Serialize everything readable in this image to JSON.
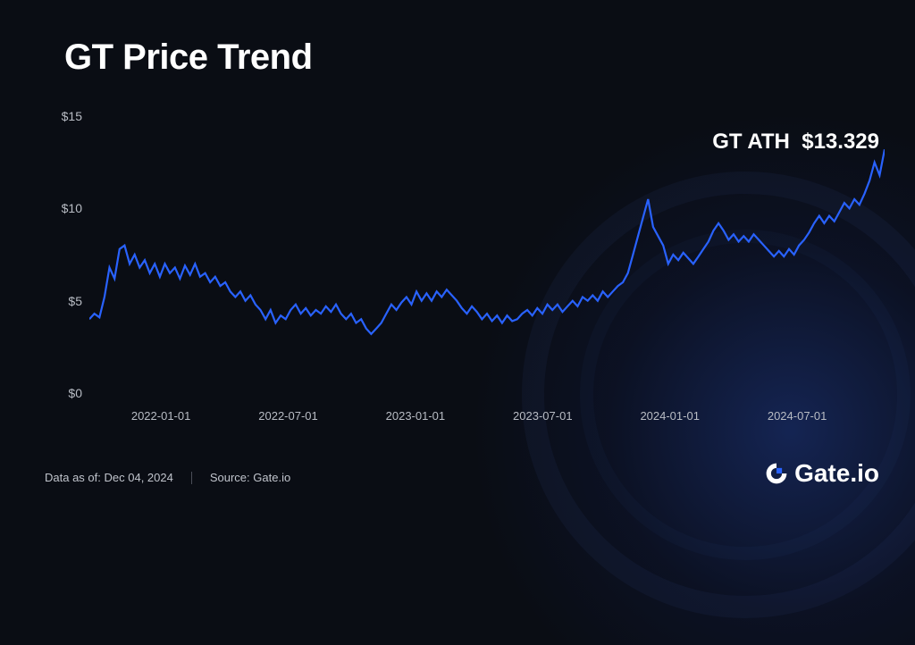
{
  "title": "GT Price Trend",
  "ath_label": "GT ATH",
  "ath_value": "$13.329",
  "footer": {
    "data_as_of_label": "Data as of:",
    "data_as_of_value": "Dec 04, 2024",
    "source_label": "Source:",
    "source_value": "Gate.io"
  },
  "logo_text": "Gate.io",
  "chart": {
    "type": "line",
    "line_color": "#2962ff",
    "line_width": 2.2,
    "background_color": "#0a0d14",
    "text_color": "#b8bcc4",
    "title_fontsize": 40,
    "tick_fontsize": 13,
    "ath_fontsize": 24,
    "ylim": [
      0,
      15
    ],
    "yticks": [
      0,
      5,
      10,
      15
    ],
    "ytick_labels": [
      "$0",
      "$5",
      "$10",
      "$15"
    ],
    "xtick_labels": [
      "2022-01-01",
      "2022-07-01",
      "2023-01-01",
      "2023-07-01",
      "2024-01-01",
      "2024-07-01"
    ],
    "xtick_positions": [
      0.09,
      0.25,
      0.41,
      0.57,
      0.73,
      0.89
    ],
    "series": [
      4.0,
      4.3,
      4.1,
      5.2,
      6.8,
      6.2,
      7.8,
      8.0,
      7.0,
      7.5,
      6.8,
      7.2,
      6.5,
      7.0,
      6.3,
      7.0,
      6.5,
      6.8,
      6.2,
      6.9,
      6.4,
      7.0,
      6.3,
      6.5,
      6.0,
      6.3,
      5.8,
      6.0,
      5.5,
      5.2,
      5.5,
      5.0,
      5.3,
      4.8,
      4.5,
      4.0,
      4.5,
      3.8,
      4.2,
      4.0,
      4.5,
      4.8,
      4.3,
      4.6,
      4.2,
      4.5,
      4.3,
      4.7,
      4.4,
      4.8,
      4.3,
      4.0,
      4.3,
      3.8,
      4.0,
      3.5,
      3.2,
      3.5,
      3.8,
      4.3,
      4.8,
      4.5,
      4.9,
      5.2,
      4.8,
      5.5,
      5.0,
      5.4,
      5.0,
      5.5,
      5.2,
      5.6,
      5.3,
      5.0,
      4.6,
      4.3,
      4.7,
      4.4,
      4.0,
      4.3,
      3.9,
      4.2,
      3.8,
      4.2,
      3.9,
      4.0,
      4.3,
      4.5,
      4.2,
      4.6,
      4.3,
      4.8,
      4.5,
      4.8,
      4.4,
      4.7,
      5.0,
      4.7,
      5.2,
      5.0,
      5.3,
      5.0,
      5.5,
      5.2,
      5.5,
      5.8,
      6.0,
      6.5,
      7.5,
      8.5,
      9.5,
      10.5,
      9.0,
      8.5,
      8.0,
      7.0,
      7.5,
      7.2,
      7.6,
      7.3,
      7.0,
      7.4,
      7.8,
      8.2,
      8.8,
      9.2,
      8.8,
      8.3,
      8.6,
      8.2,
      8.5,
      8.2,
      8.6,
      8.3,
      8.0,
      7.7,
      7.4,
      7.7,
      7.4,
      7.8,
      7.5,
      8.0,
      8.3,
      8.7,
      9.2,
      9.6,
      9.2,
      9.6,
      9.3,
      9.8,
      10.3,
      10.0,
      10.5,
      10.2,
      10.8,
      11.5,
      12.5,
      11.8,
      13.2
    ]
  }
}
